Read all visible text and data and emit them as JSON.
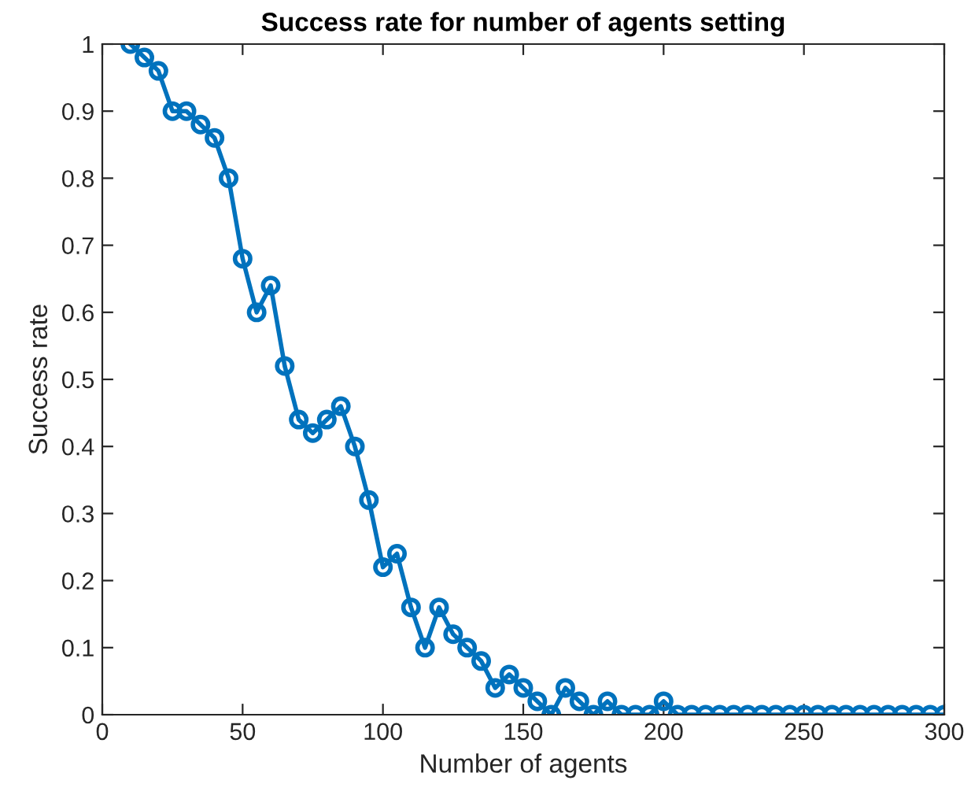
{
  "chart_data": {
    "type": "line",
    "title": "Success rate for number of agents setting",
    "xlabel": "Number of agents",
    "ylabel": "Success rate",
    "x": [
      10,
      15,
      20,
      25,
      30,
      35,
      40,
      45,
      50,
      55,
      60,
      65,
      70,
      75,
      80,
      85,
      90,
      95,
      100,
      105,
      110,
      115,
      120,
      125,
      130,
      135,
      140,
      145,
      150,
      155,
      160,
      165,
      170,
      175,
      180,
      185,
      190,
      195,
      200,
      205,
      210,
      215,
      220,
      225,
      230,
      235,
      240,
      245,
      250,
      255,
      260,
      265,
      270,
      275,
      280,
      285,
      290,
      295,
      300
    ],
    "series": [
      {
        "color": "#0072bd",
        "values": [
          1,
          0.98,
          0.96,
          0.9,
          0.9,
          0.88,
          0.86,
          0.8,
          0.68,
          0.6,
          0.64,
          0.52,
          0.44,
          0.42,
          0.44,
          0.46,
          0.4,
          0.32,
          0.22,
          0.24,
          0.16,
          0.1,
          0.16,
          0.12,
          0.1,
          0.08,
          0.04,
          0.06,
          0.04,
          0.02,
          0,
          0.04,
          0.02,
          0,
          0.02,
          0,
          0,
          0,
          0.02,
          0,
          0,
          0,
          0,
          0,
          0,
          0,
          0,
          0,
          0,
          0,
          0,
          0,
          0,
          0,
          0,
          0,
          0,
          0,
          0
        ]
      }
    ],
    "xlim": [
      0,
      300
    ],
    "xticks": [
      0,
      50,
      100,
      150,
      200,
      250,
      300
    ],
    "ylim": [
      0,
      1
    ],
    "yticks": [
      0,
      0.1,
      0.2,
      0.3,
      0.4,
      0.5,
      0.6,
      0.7,
      0.8,
      0.9,
      1
    ],
    "grid": false,
    "legend": false,
    "marker": "circle",
    "line_style": "solid"
  }
}
